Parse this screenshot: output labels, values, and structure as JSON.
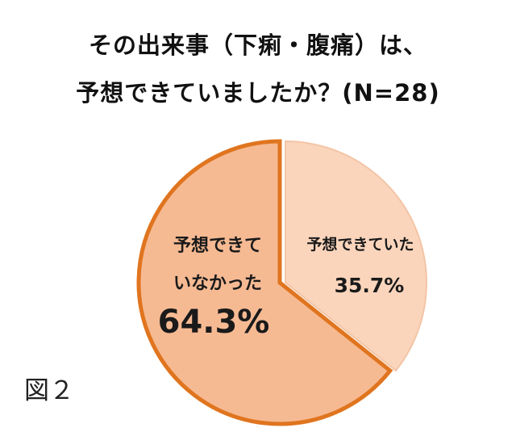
{
  "title": {
    "line1": "その出来事（下痢・腹痛）は、",
    "line2": "予想できていましたか？(N=28)"
  },
  "figure_label": "図２",
  "chart_data": {
    "type": "pie",
    "title": "その出来事（下痢・腹痛）は、予想できていましたか？(N=28)",
    "n": 28,
    "slices": [
      {
        "label": "予想できていた",
        "value": 35.7,
        "value_label": "35.7%",
        "fill": "#FAD5BC",
        "stroke": "#F3C4A5"
      },
      {
        "label_lines": [
          "予想できて",
          "いなかった"
        ],
        "value": 64.3,
        "value_label": "64.3%",
        "fill": "#F6BA93",
        "stroke": "#E0751F",
        "highlight": true,
        "value_color": "#E8141E"
      }
    ]
  }
}
